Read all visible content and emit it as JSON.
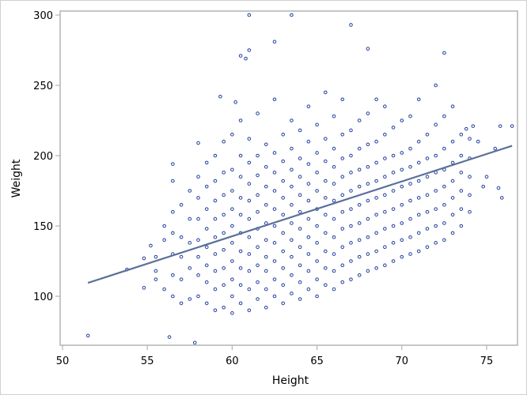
{
  "chart_data": {
    "type": "scatter",
    "xlabel": "Height",
    "ylabel": "Weight",
    "xlim": [
      49.8,
      76.7
    ],
    "ylim": [
      65,
      303
    ],
    "xticks": [
      "50",
      "55",
      "60",
      "65",
      "70",
      "75"
    ],
    "yticks": [
      "100",
      "150",
      "200",
      "250",
      "300"
    ],
    "grid": false,
    "marker_color": "#1f3fa0",
    "line_color": "#5a6f9a",
    "fit_line": {
      "type": "linear regression",
      "from": [
        51.5,
        109.5
      ],
      "to": [
        76.5,
        207
      ]
    },
    "columns": [
      {
        "x": 55.5,
        "y": [
          112,
          118,
          128
        ]
      },
      {
        "x": 56,
        "y": [
          105,
          140,
          150
        ]
      },
      {
        "x": 56.5,
        "y": [
          100,
          115,
          130,
          145,
          160,
          182
        ]
      },
      {
        "x": 57,
        "y": [
          95,
          112,
          128,
          142,
          165
        ]
      },
      {
        "x": 57.5,
        "y": [
          98,
          120,
          138,
          155,
          175
        ]
      },
      {
        "x": 58,
        "y": [
          100,
          115,
          128,
          140,
          155,
          170,
          185
        ]
      },
      {
        "x": 58.5,
        "y": [
          95,
          110,
          122,
          135,
          148,
          162,
          178,
          195
        ]
      },
      {
        "x": 59,
        "y": [
          90,
          105,
          118,
          130,
          142,
          155,
          168,
          182,
          200
        ]
      },
      {
        "x": 59.5,
        "y": [
          92,
          108,
          120,
          133,
          145,
          158,
          172,
          188,
          210
        ]
      },
      {
        "x": 60,
        "y": [
          88,
          100,
          112,
          125,
          138,
          150,
          162,
          175,
          190,
          215
        ]
      },
      {
        "x": 60.5,
        "y": [
          95,
          108,
          120,
          132,
          145,
          158,
          170,
          185,
          200,
          225
        ]
      },
      {
        "x": 61,
        "y": [
          90,
          105,
          118,
          130,
          142,
          155,
          168,
          180,
          195,
          212
        ]
      },
      {
        "x": 61.5,
        "y": [
          98,
          110,
          122,
          135,
          148,
          160,
          172,
          186,
          200,
          230
        ]
      },
      {
        "x": 62,
        "y": [
          92,
          105,
          118,
          128,
          140,
          152,
          165,
          178,
          192,
          208
        ]
      },
      {
        "x": 62.5,
        "y": [
          100,
          112,
          125,
          138,
          150,
          162,
          175,
          188,
          202,
          240
        ]
      },
      {
        "x": 63,
        "y": [
          95,
          108,
          120,
          132,
          145,
          158,
          170,
          182,
          196,
          215
        ]
      },
      {
        "x": 63.5,
        "y": [
          102,
          115,
          128,
          140,
          152,
          165,
          178,
          190,
          205,
          225
        ]
      },
      {
        "x": 64,
        "y": [
          98,
          110,
          122,
          135,
          148,
          160,
          172,
          185,
          198,
          218
        ]
      },
      {
        "x": 64.5,
        "y": [
          105,
          118,
          130,
          142,
          155,
          168,
          180,
          194,
          210,
          235
        ]
      },
      {
        "x": 65,
        "y": [
          100,
          112,
          125,
          138,
          150,
          162,
          175,
          188,
          202,
          222
        ]
      },
      {
        "x": 65.5,
        "y": [
          108,
          120,
          132,
          145,
          158,
          170,
          182,
          196,
          212,
          245
        ]
      },
      {
        "x": 66,
        "y": [
          105,
          118,
          130,
          142,
          155,
          168,
          180,
          192,
          205,
          228
        ]
      },
      {
        "x": 66.5,
        "y": [
          110,
          122,
          135,
          148,
          160,
          172,
          185,
          198,
          215,
          240
        ]
      },
      {
        "x": 67,
        "y": [
          112,
          125,
          138,
          150,
          162,
          175,
          188,
          200,
          218
        ]
      },
      {
        "x": 67.5,
        "y": [
          115,
          128,
          140,
          152,
          165,
          178,
          190,
          205,
          225
        ]
      },
      {
        "x": 68,
        "y": [
          118,
          130,
          142,
          155,
          168,
          180,
          192,
          208,
          230
        ]
      },
      {
        "x": 68.5,
        "y": [
          120,
          132,
          145,
          158,
          170,
          182,
          195,
          210,
          240
        ]
      },
      {
        "x": 69,
        "y": [
          122,
          135,
          148,
          160,
          172,
          185,
          198,
          215,
          235
        ]
      },
      {
        "x": 69.5,
        "y": [
          125,
          138,
          150,
          162,
          175,
          188,
          200,
          220
        ]
      },
      {
        "x": 70,
        "y": [
          128,
          140,
          152,
          165,
          178,
          190,
          202,
          225
        ]
      },
      {
        "x": 70.5,
        "y": [
          130,
          142,
          155,
          168,
          180,
          192,
          205,
          228
        ]
      },
      {
        "x": 71,
        "y": [
          132,
          145,
          158,
          170,
          182,
          195,
          210,
          240
        ]
      },
      {
        "x": 71.5,
        "y": [
          135,
          148,
          160,
          172,
          185,
          198,
          215
        ]
      },
      {
        "x": 72,
        "y": [
          138,
          150,
          162,
          175,
          188,
          200,
          222,
          250
        ]
      },
      {
        "x": 72.5,
        "y": [
          140,
          152,
          165,
          178,
          190,
          205,
          228
        ]
      },
      {
        "x": 73,
        "y": [
          145,
          158,
          170,
          182,
          195,
          210,
          235
        ]
      },
      {
        "x": 73.5,
        "y": [
          150,
          162,
          175,
          188,
          200,
          215
        ]
      },
      {
        "x": 74,
        "y": [
          160,
          172,
          185,
          198,
          212
        ]
      }
    ],
    "points": [
      [
        51.5,
        72
      ],
      [
        56.3,
        71
      ],
      [
        57.8,
        67
      ],
      [
        61,
        300
      ],
      [
        63.5,
        300
      ],
      [
        67,
        293
      ],
      [
        62.5,
        281
      ],
      [
        61,
        275
      ],
      [
        60.5,
        271
      ],
      [
        60.8,
        269
      ],
      [
        68,
        276
      ],
      [
        72.5,
        273
      ],
      [
        75.8,
        221
      ],
      [
        76.5,
        221
      ],
      [
        74.2,
        221
      ],
      [
        73.8,
        219
      ],
      [
        75.5,
        205
      ],
      [
        74.5,
        210
      ],
      [
        75,
        185
      ],
      [
        75.9,
        170
      ],
      [
        75.7,
        177
      ],
      [
        74.8,
        178
      ],
      [
        53.8,
        119
      ],
      [
        55.2,
        136
      ],
      [
        54.8,
        127
      ],
      [
        54.8,
        106
      ],
      [
        59.3,
        242
      ],
      [
        60.2,
        238
      ],
      [
        58,
        209
      ],
      [
        56.5,
        194
      ]
    ]
  }
}
